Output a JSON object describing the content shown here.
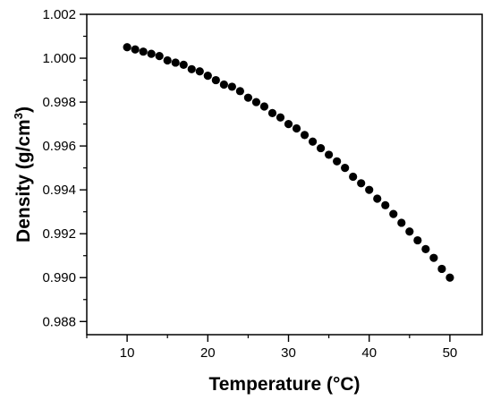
{
  "chart_data": {
    "type": "scatter",
    "title": "",
    "xlabel": "Temperature (°C)",
    "ylabel_main": "Density (g/cm",
    "ylabel_sup": "3",
    "ylabel_close": ")",
    "xlim": [
      5,
      54
    ],
    "ylim": [
      0.9874,
      1.002
    ],
    "x_ticks": [
      10,
      20,
      30,
      40,
      50
    ],
    "x_tick_labels": [
      "10",
      "20",
      "30",
      "40",
      "50"
    ],
    "y_ticks": [
      0.988,
      0.99,
      0.992,
      0.994,
      0.996,
      0.998,
      1.0,
      1.002
    ],
    "y_tick_labels": [
      "0.988",
      "0.990",
      "0.992",
      "0.994",
      "0.996",
      "0.998",
      "1.000",
      "1.002"
    ],
    "x_minor_step": 5,
    "y_minor_step": 0.001,
    "grid": false,
    "marker_color": "#000000",
    "series": [
      {
        "x": [
          10,
          11,
          12,
          13,
          14,
          15,
          16,
          17,
          18,
          19,
          20,
          21,
          22,
          23,
          24,
          25,
          26,
          27,
          28,
          29,
          30,
          31,
          32,
          33,
          34,
          35,
          36,
          37,
          38,
          39,
          40,
          41,
          42,
          43,
          44,
          45,
          46,
          47,
          48,
          49,
          50
        ],
        "values": [
          1.0005,
          1.0004,
          1.0003,
          1.0002,
          1.0001,
          0.9999,
          0.9998,
          0.9997,
          0.9995,
          0.9994,
          0.9992,
          0.999,
          0.9988,
          0.9987,
          0.9985,
          0.9982,
          0.998,
          0.9978,
          0.9975,
          0.9973,
          0.997,
          0.9968,
          0.9965,
          0.9962,
          0.9959,
          0.9956,
          0.9953,
          0.995,
          0.9946,
          0.9943,
          0.994,
          0.9936,
          0.9933,
          0.9929,
          0.9925,
          0.9921,
          0.9917,
          0.9913,
          0.9909,
          0.9904,
          0.99
        ]
      }
    ]
  }
}
